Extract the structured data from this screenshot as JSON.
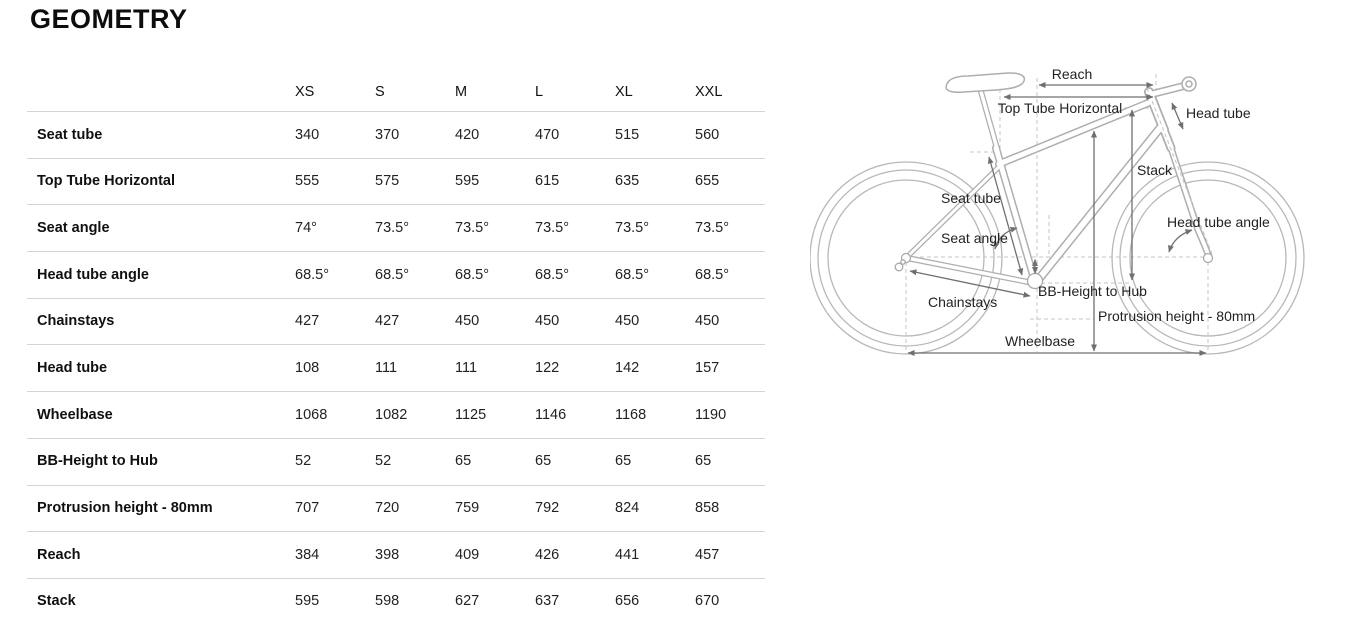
{
  "page": {
    "title": "GEOMETRY"
  },
  "table": {
    "columns": [
      "XS",
      "S",
      "M",
      "L",
      "XL",
      "XXL"
    ],
    "rows": [
      {
        "label": "Seat tube",
        "values": [
          "340",
          "370",
          "420",
          "470",
          "515",
          "560"
        ]
      },
      {
        "label": "Top Tube Horizontal",
        "values": [
          "555",
          "575",
          "595",
          "615",
          "635",
          "655"
        ]
      },
      {
        "label": "Seat angle",
        "values": [
          "74°",
          "73.5°",
          "73.5°",
          "73.5°",
          "73.5°",
          "73.5°"
        ]
      },
      {
        "label": "Head tube angle",
        "values": [
          "68.5°",
          "68.5°",
          "68.5°",
          "68.5°",
          "68.5°",
          "68.5°"
        ]
      },
      {
        "label": "Chainstays",
        "values": [
          "427",
          "427",
          "450",
          "450",
          "450",
          "450"
        ]
      },
      {
        "label": "Head tube",
        "values": [
          "108",
          "111",
          "111",
          "122",
          "142",
          "157"
        ]
      },
      {
        "label": "Wheelbase",
        "values": [
          "1068",
          "1082",
          "1125",
          "1146",
          "1168",
          "1190"
        ]
      },
      {
        "label": "BB-Height to Hub",
        "values": [
          "52",
          "52",
          "65",
          "65",
          "65",
          "65"
        ]
      },
      {
        "label": "Protrusion height - 80mm",
        "values": [
          "707",
          "720",
          "759",
          "792",
          "824",
          "858"
        ]
      },
      {
        "label": "Reach",
        "values": [
          "384",
          "398",
          "409",
          "426",
          "441",
          "457"
        ]
      },
      {
        "label": "Stack",
        "values": [
          "595",
          "598",
          "627",
          "637",
          "656",
          "670"
        ]
      }
    ]
  },
  "diagram": {
    "labels": {
      "reach": "Reach",
      "top_tube_horizontal": "Top Tube Horizontal",
      "head_tube": "Head tube",
      "stack": "Stack",
      "seat_tube": "Seat tube",
      "seat_angle": "Seat angle",
      "head_tube_angle": "Head tube angle",
      "chainstays": "Chainstays",
      "bb_height_to_hub": "BB-Height to Hub",
      "protrusion_height": "Protrusion height - 80mm",
      "wheelbase": "Wheelbase"
    }
  },
  "colors": {
    "bike_outline": "#aeaeae",
    "dashed_guides": "#c4c4c4",
    "dimension_arrows": "#6f6f6f",
    "table_divider": "#d4d4d4",
    "text": "#111111"
  }
}
